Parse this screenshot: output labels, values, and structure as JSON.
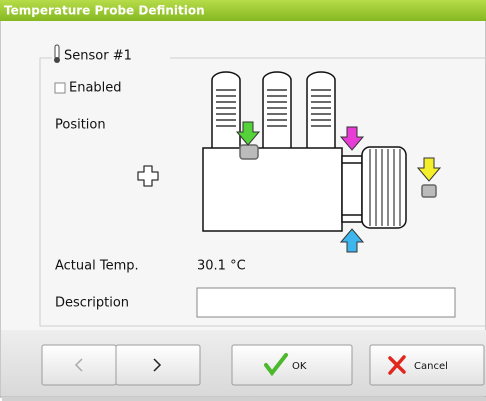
{
  "window": {
    "title": "Temperature Probe Definition"
  },
  "group": {
    "title": "Sensor #1"
  },
  "enabled": {
    "label": "Enabled",
    "checked": false
  },
  "position": {
    "label": "Position"
  },
  "actual_temp": {
    "label": "Actual Temp.",
    "value": "30.1 °C"
  },
  "description": {
    "label": "Description"
  },
  "buttons": {
    "ok": "OK",
    "cancel": "Cancel"
  }
}
